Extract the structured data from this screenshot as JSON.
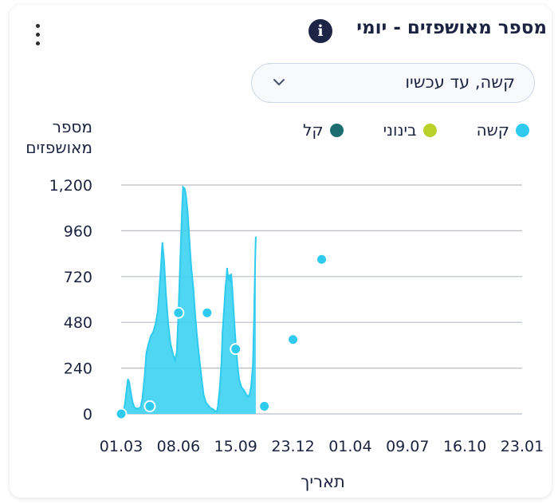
{
  "header": {
    "title": "מספר מאושפזים - יומי",
    "info_icon": "info-icon",
    "menu_icon": "kebab-menu-icon"
  },
  "filter": {
    "selected": "קשה, עד עכשיו",
    "chevron_icon": "chevron-down-icon"
  },
  "colors": {
    "series": "#2fcbee",
    "series_fill": "#3fd2f2",
    "grid": "#b9bec8",
    "marker_border": "#ffffff"
  },
  "chart_data": {
    "type": "area",
    "ylabel": "מספר מאושפזים",
    "xlabel": "תאריך",
    "ylim": [
      0,
      1200
    ],
    "yticks": [
      0,
      240,
      480,
      720,
      960,
      1200
    ],
    "ytick_labels": [
      "0",
      "240",
      "480",
      "720",
      "960",
      "1,200"
    ],
    "xticks": [
      "01.03",
      "08.06",
      "15.09",
      "23.12",
      "01.04",
      "09.07",
      "16.10",
      "23.01"
    ],
    "legend": [
      {
        "label": "קשה",
        "color": "#2fcbee"
      },
      {
        "label": "בינוני",
        "color": "#b9d12a"
      },
      {
        "label": "קל",
        "color": "#1b6d70"
      }
    ],
    "series": [
      {
        "name": "קשה",
        "points": [
          [
            0.0,
            0
          ],
          [
            0.04,
            10
          ],
          [
            0.07,
            60
          ],
          [
            0.1,
            140
          ],
          [
            0.12,
            183
          ],
          [
            0.14,
            165
          ],
          [
            0.17,
            110
          ],
          [
            0.2,
            60
          ],
          [
            0.23,
            35
          ],
          [
            0.26,
            28
          ],
          [
            0.3,
            28
          ],
          [
            0.34,
            35
          ],
          [
            0.37,
            80
          ],
          [
            0.41,
            200
          ],
          [
            0.44,
            320
          ],
          [
            0.48,
            370
          ],
          [
            0.52,
            410
          ],
          [
            0.56,
            430
          ],
          [
            0.6,
            470
          ],
          [
            0.64,
            540
          ],
          [
            0.67,
            660
          ],
          [
            0.7,
            800
          ],
          [
            0.72,
            900
          ],
          [
            0.75,
            800
          ],
          [
            0.78,
            640
          ],
          [
            0.82,
            480
          ],
          [
            0.86,
            370
          ],
          [
            0.9,
            320
          ],
          [
            0.94,
            280
          ],
          [
            0.97,
            320
          ],
          [
            1.0,
            530
          ],
          [
            1.03,
            790
          ],
          [
            1.06,
            1050
          ],
          [
            1.08,
            1190
          ],
          [
            1.11,
            1180
          ],
          [
            1.13,
            1150
          ],
          [
            1.16,
            1060
          ],
          [
            1.19,
            920
          ],
          [
            1.22,
            780
          ],
          [
            1.26,
            660
          ],
          [
            1.29,
            530
          ],
          [
            1.32,
            420
          ],
          [
            1.35,
            330
          ],
          [
            1.38,
            250
          ],
          [
            1.41,
            170
          ],
          [
            1.44,
            100
          ],
          [
            1.48,
            60
          ],
          [
            1.52,
            45
          ],
          [
            1.56,
            30
          ],
          [
            1.6,
            25
          ],
          [
            1.64,
            15
          ],
          [
            1.67,
            12
          ],
          [
            1.69,
            40
          ],
          [
            1.72,
            130
          ],
          [
            1.75,
            270
          ],
          [
            1.77,
            430
          ],
          [
            1.8,
            560
          ],
          [
            1.82,
            660
          ],
          [
            1.84,
            720
          ],
          [
            1.85,
            765
          ],
          [
            1.87,
            700
          ],
          [
            1.89,
            730
          ],
          [
            1.91,
            690
          ],
          [
            1.92,
            735
          ],
          [
            1.94,
            660
          ],
          [
            1.96,
            560
          ],
          [
            1.98,
            460
          ],
          [
            2.0,
            370
          ],
          [
            2.03,
            260
          ],
          [
            2.06,
            180
          ],
          [
            2.1,
            140
          ],
          [
            2.14,
            125
          ],
          [
            2.18,
            105
          ],
          [
            2.21,
            90
          ],
          [
            2.24,
            100
          ],
          [
            2.27,
            145
          ],
          [
            2.3,
            260
          ],
          [
            2.32,
            500
          ],
          [
            2.34,
            800
          ],
          [
            2.35,
            930
          ]
        ]
      }
    ],
    "markers": [
      [
        0.0,
        0
      ],
      [
        0.5,
        40
      ],
      [
        1.0,
        530
      ],
      [
        1.5,
        530
      ],
      [
        2.0,
        340
      ],
      [
        2.5,
        40
      ],
      [
        3.0,
        390
      ],
      [
        3.5,
        810
      ]
    ]
  },
  "axis_text": {
    "ylabel": "מספר מאושפזים",
    "xlabel": "תאריך"
  }
}
